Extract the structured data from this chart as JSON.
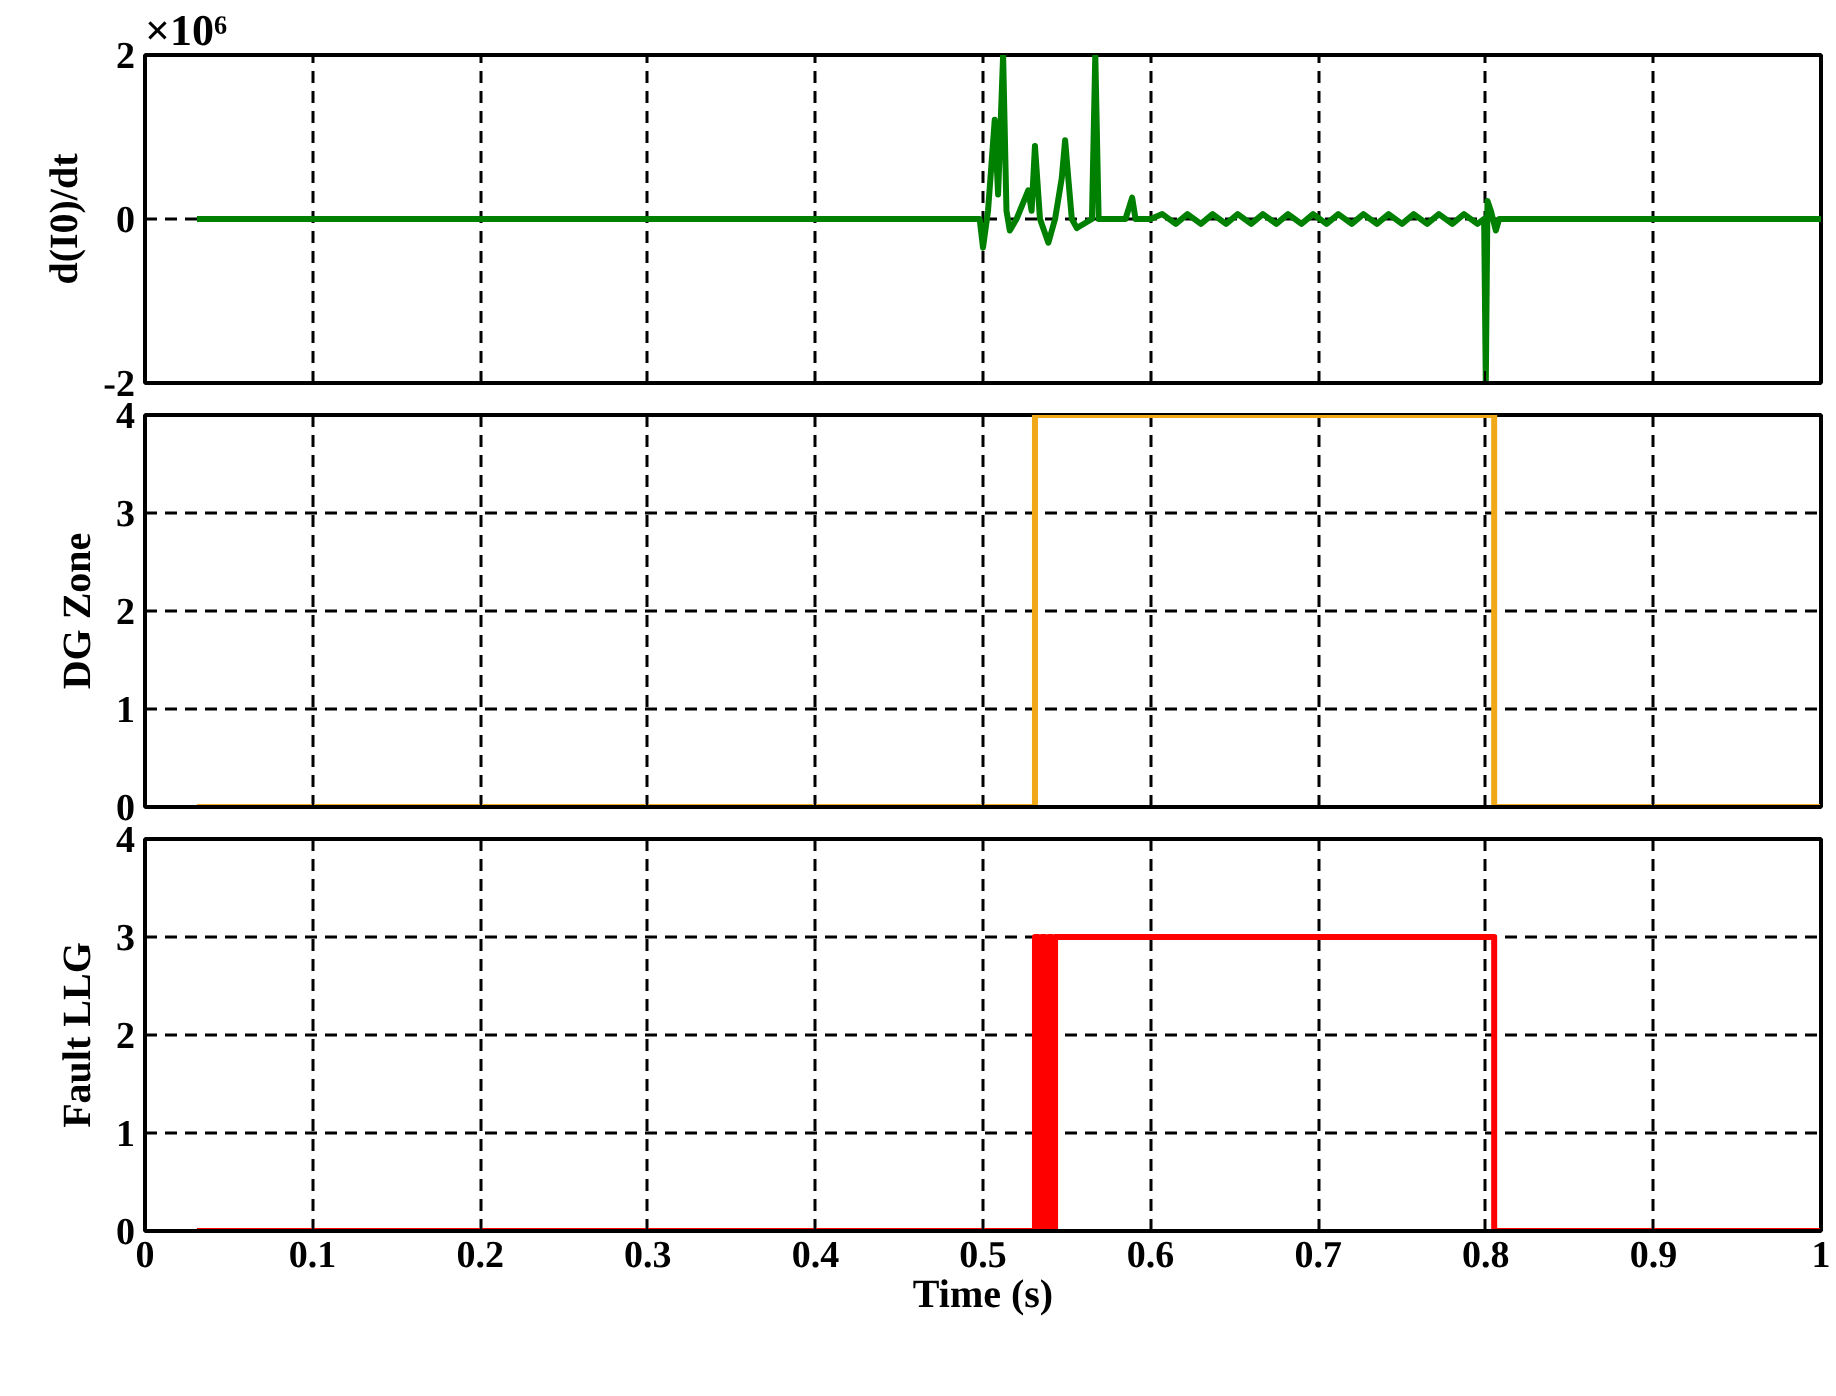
{
  "chart_data": [
    {
      "type": "line",
      "ylabel": "d(I0)/dt",
      "annotations": [
        "×10⁶"
      ],
      "series": [
        {
          "color": "#008000",
          "x": [
            0.031,
            0.498,
            0.5,
            0.503,
            0.507,
            0.509,
            0.512,
            0.514,
            0.516,
            0.52,
            0.527,
            0.529,
            0.531,
            0.534,
            0.539,
            0.543,
            0.547,
            0.549,
            0.551,
            0.553,
            0.556,
            0.565,
            0.567,
            0.569,
            0.575,
            0.585,
            0.589,
            0.591,
            0.6,
            0.607,
            0.615,
            0.622,
            0.63,
            0.637,
            0.645,
            0.652,
            0.66,
            0.667,
            0.675,
            0.682,
            0.69,
            0.697,
            0.705,
            0.712,
            0.72,
            0.727,
            0.735,
            0.742,
            0.75,
            0.757,
            0.765,
            0.772,
            0.78,
            0.787,
            0.795,
            0.799,
            0.8,
            0.801,
            0.803,
            0.806,
            0.808,
            0.812,
            0.82,
            1.0
          ],
          "values": [
            0,
            0,
            -0.35,
            0.1,
            1.21,
            0.3,
            2,
            0.1,
            -0.14,
            0,
            0.35,
            0.1,
            0.89,
            0,
            -0.29,
            0,
            0.5,
            0.96,
            0.47,
            0,
            -0.11,
            0,
            2,
            0,
            0,
            0,
            0.26,
            0,
            0,
            0.06,
            -0.06,
            0.06,
            -0.06,
            0.06,
            -0.06,
            0.06,
            -0.06,
            0.06,
            -0.06,
            0.06,
            -0.06,
            0.06,
            -0.06,
            0.06,
            -0.06,
            0.06,
            -0.06,
            0.06,
            -0.06,
            0.06,
            -0.06,
            0.06,
            -0.06,
            0.06,
            -0.06,
            0,
            -2,
            0.22,
            0.1,
            -0.14,
            0,
            0,
            0,
            0
          ]
        }
      ],
      "xlim": [
        0,
        1
      ],
      "xticks": [
        0,
        0.1,
        0.2,
        0.3,
        0.4,
        0.5,
        0.6,
        0.7,
        0.8,
        0.9,
        1
      ],
      "ylim": [
        -2,
        2
      ],
      "yticks": [
        -2,
        0,
        2
      ],
      "grid": true,
      "line_style": "solid",
      "tick_labels": "y"
    },
    {
      "type": "line",
      "ylabel": "DG Zone",
      "series": [
        {
          "color": "#f0a818",
          "x": [
            0.031,
            0.531,
            0.531,
            0.805,
            0.805,
            1.0
          ],
          "values": [
            0,
            0,
            4,
            4,
            0,
            0
          ]
        }
      ],
      "xlim": [
        0,
        1
      ],
      "xticks": [
        0,
        0.1,
        0.2,
        0.3,
        0.4,
        0.5,
        0.6,
        0.7,
        0.8,
        0.9,
        1
      ],
      "ylim": [
        0,
        4
      ],
      "yticks": [
        0,
        1,
        2,
        3,
        4
      ],
      "grid": true,
      "line_style": "solid",
      "tick_labels": "y"
    },
    {
      "type": "line",
      "ylabel": "Fault LLG",
      "xlabel": "Time (s)",
      "series": [
        {
          "color": "#ff0000",
          "x": [
            0.031,
            0.531,
            0.531,
            0.533,
            0.533,
            0.535,
            0.535,
            0.537,
            0.537,
            0.539,
            0.539,
            0.541,
            0.541,
            0.543,
            0.543,
            0.805,
            0.805,
            1.0
          ],
          "values": [
            0,
            0,
            3,
            3,
            0,
            0,
            3,
            3,
            0,
            0,
            3,
            3,
            0,
            0,
            3,
            3,
            0,
            0
          ]
        }
      ],
      "xlim": [
        0,
        1
      ],
      "xticks": [
        0,
        0.1,
        0.2,
        0.3,
        0.4,
        0.5,
        0.6,
        0.7,
        0.8,
        0.9,
        1
      ],
      "ylim": [
        0,
        4
      ],
      "yticks": [
        0,
        1,
        2,
        3,
        4
      ],
      "grid": true,
      "line_style": "solid"
    }
  ]
}
